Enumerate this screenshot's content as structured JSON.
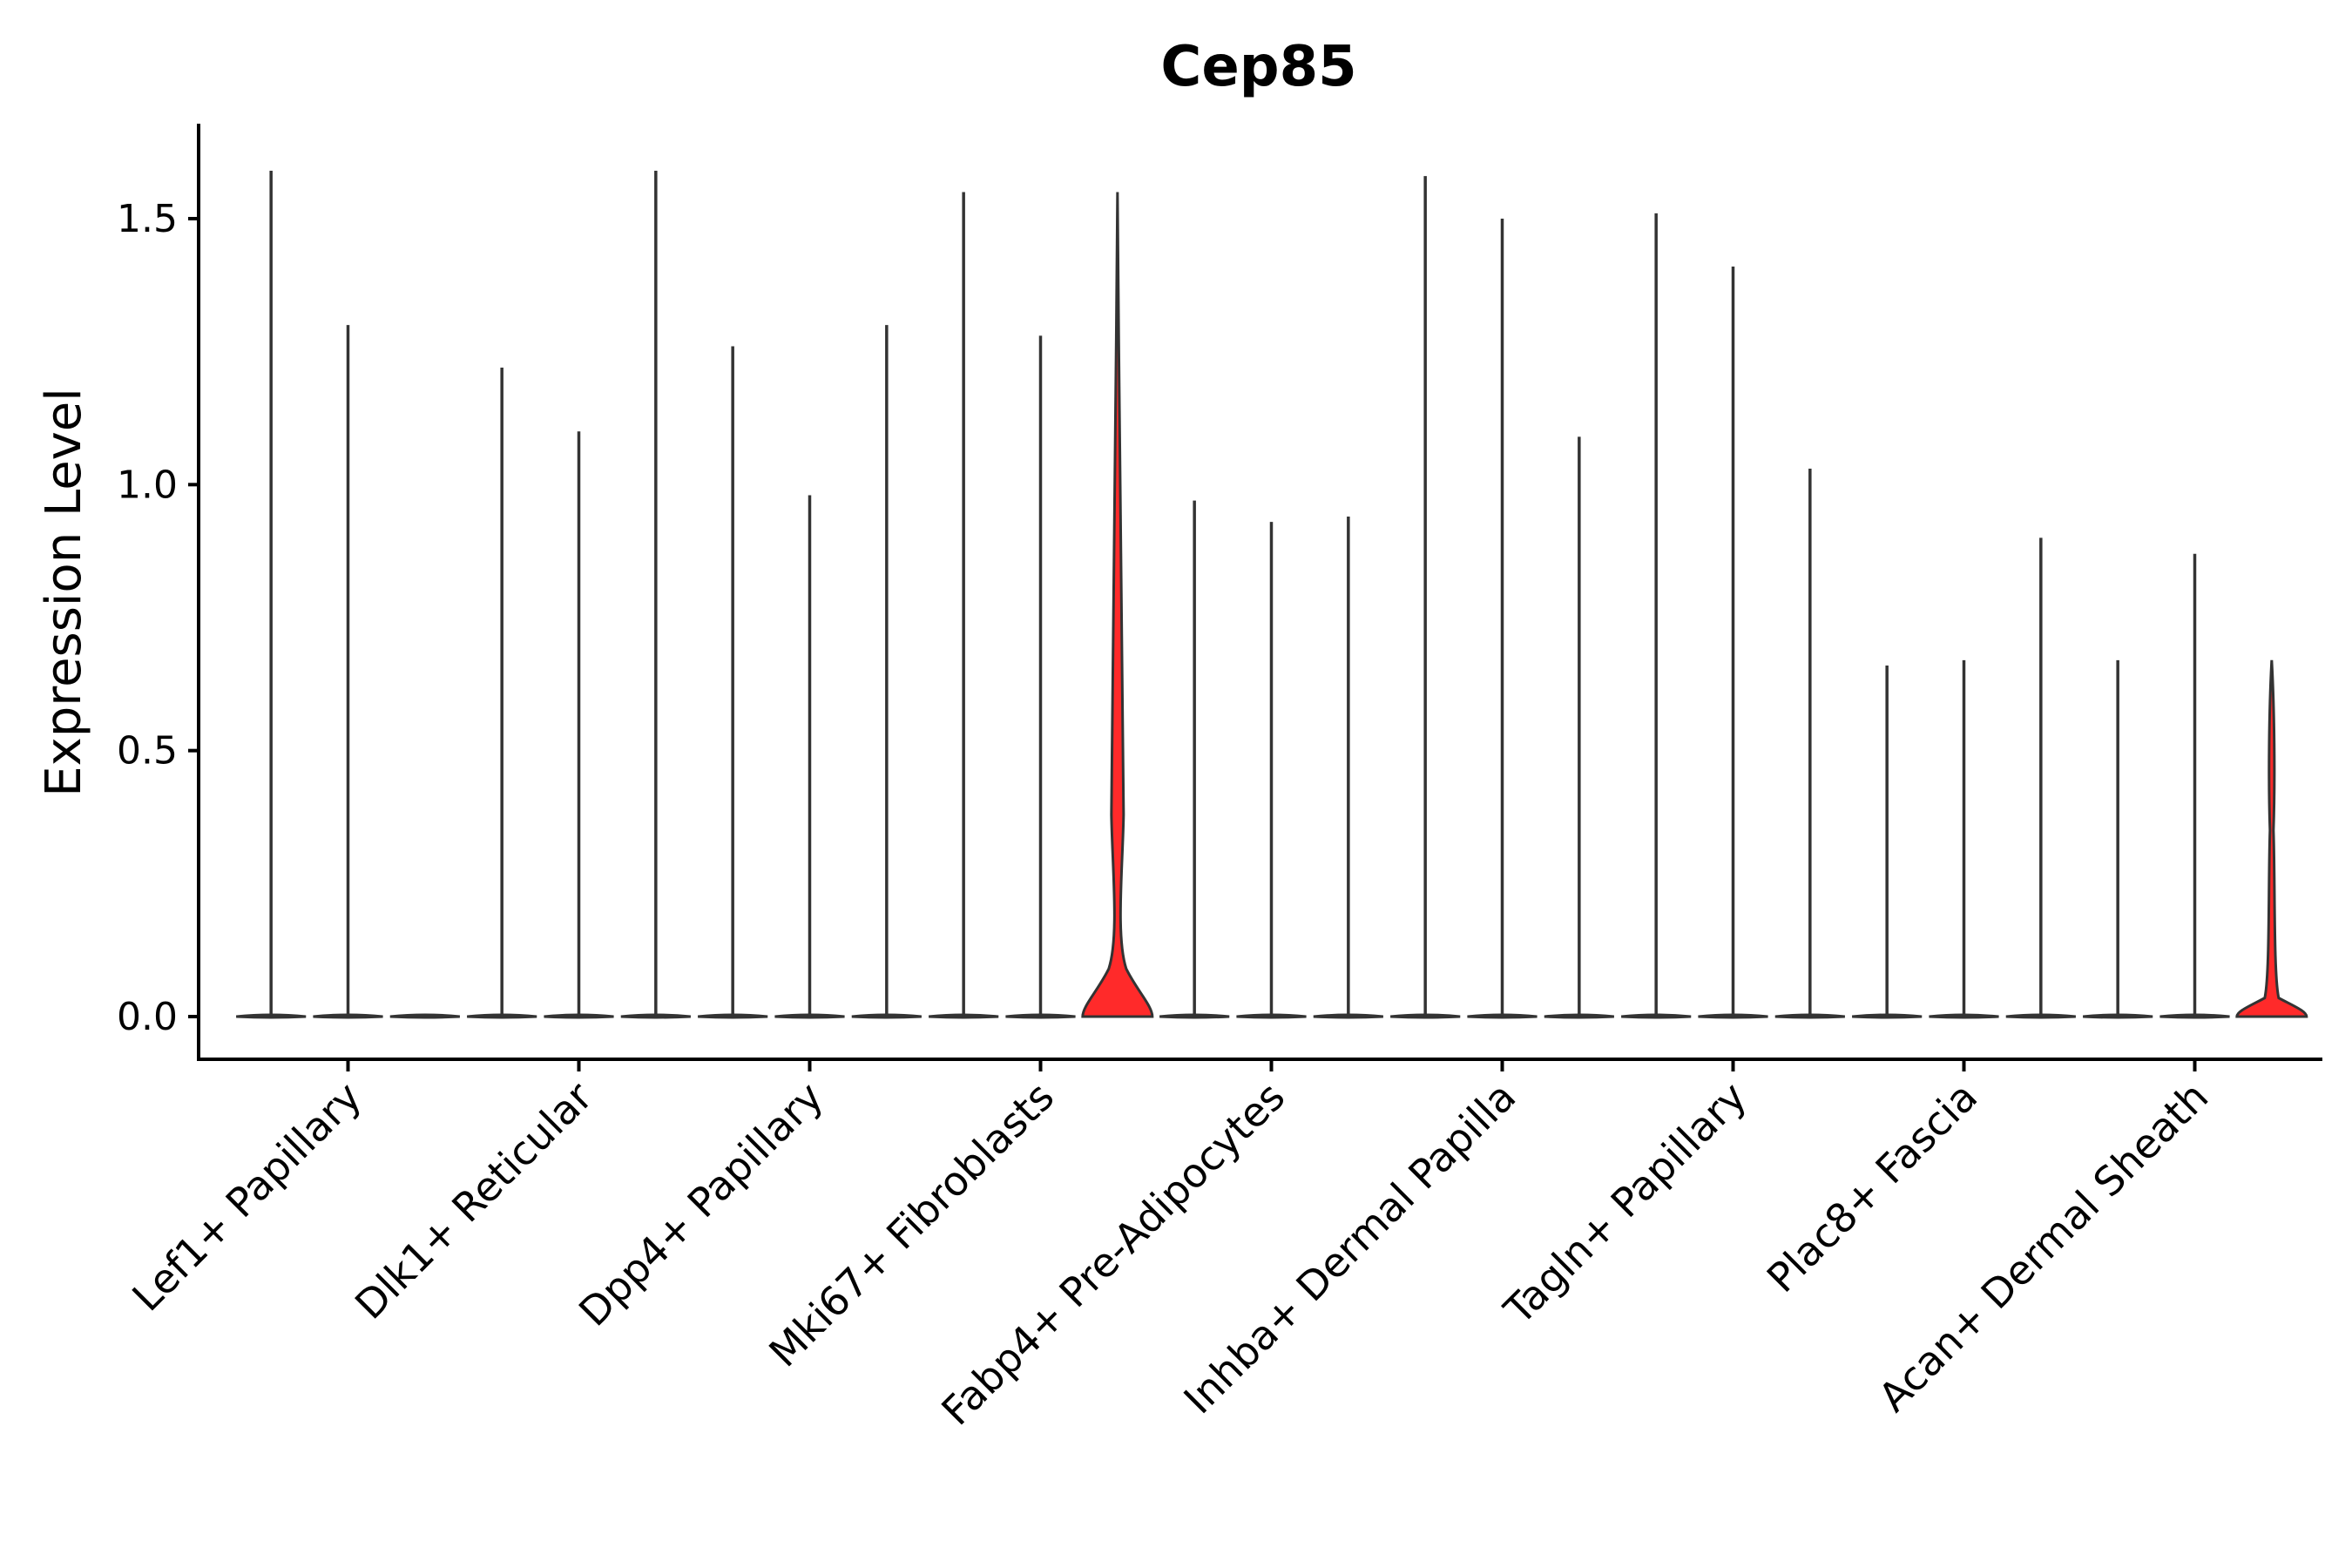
{
  "chart_data": {
    "type": "violin",
    "title": "Cep85",
    "xlabel": "",
    "ylabel": "Expression Level",
    "ylim": [
      -0.08,
      1.68
    ],
    "yticks": [
      0.0,
      0.5,
      1.0,
      1.5
    ],
    "ytick_labels": [
      "0.0",
      "0.5",
      "1.0",
      "1.5"
    ],
    "categories": [
      "Lef1+ Papillary",
      "Dlk1+ Reticular",
      "Dpp4+ Papillary",
      "Mki67+ Fibroblasts",
      "Fabp4+ Pre-Adipocytes",
      "Inhba+ Dermal Papilla",
      "Tagln+ Papillary",
      "Plac8+ Fascia",
      "Acan+ Dermal Sheath"
    ],
    "groups_per_category": 3,
    "violins": [
      {
        "category": "Lef1+ Papillary",
        "index": 0,
        "max": 1.59,
        "color": "#ffffff",
        "highlight": false
      },
      {
        "category": "Lef1+ Papillary",
        "index": 1,
        "max": 1.3,
        "color": "#ffffff",
        "highlight": false
      },
      {
        "category": "Lef1+ Papillary",
        "index": 2,
        "max": 0.0,
        "color": "#ffffff",
        "highlight": false
      },
      {
        "category": "Dlk1+ Reticular",
        "index": 0,
        "max": 1.22,
        "color": "#ffffff",
        "highlight": false
      },
      {
        "category": "Dlk1+ Reticular",
        "index": 1,
        "max": 1.1,
        "color": "#ffffff",
        "highlight": false
      },
      {
        "category": "Dlk1+ Reticular",
        "index": 2,
        "max": 1.59,
        "color": "#ffffff",
        "highlight": false
      },
      {
        "category": "Dpp4+ Papillary",
        "index": 0,
        "max": 1.26,
        "color": "#ffffff",
        "highlight": false
      },
      {
        "category": "Dpp4+ Papillary",
        "index": 1,
        "max": 0.98,
        "color": "#ffffff",
        "highlight": false
      },
      {
        "category": "Dpp4+ Papillary",
        "index": 2,
        "max": 1.3,
        "color": "#ffffff",
        "highlight": false
      },
      {
        "category": "Mki67+ Fibroblasts",
        "index": 0,
        "max": 1.55,
        "color": "#ffffff",
        "highlight": false
      },
      {
        "category": "Mki67+ Fibroblasts",
        "index": 1,
        "max": 1.28,
        "color": "#ffffff",
        "highlight": false
      },
      {
        "category": "Mki67+ Fibroblasts",
        "index": 2,
        "max": 1.55,
        "color": "#ff2a2a",
        "highlight": true
      },
      {
        "category": "Fabp4+ Pre-Adipocytes",
        "index": 0,
        "max": 0.97,
        "color": "#ffffff",
        "highlight": false
      },
      {
        "category": "Fabp4+ Pre-Adipocytes",
        "index": 1,
        "max": 0.93,
        "color": "#ffffff",
        "highlight": false
      },
      {
        "category": "Fabp4+ Pre-Adipocytes",
        "index": 2,
        "max": 0.94,
        "color": "#ffffff",
        "highlight": false
      },
      {
        "category": "Inhba+ Dermal Papilla",
        "index": 0,
        "max": 1.58,
        "color": "#ffffff",
        "highlight": false
      },
      {
        "category": "Inhba+ Dermal Papilla",
        "index": 1,
        "max": 1.5,
        "color": "#ffffff",
        "highlight": false
      },
      {
        "category": "Inhba+ Dermal Papilla",
        "index": 2,
        "max": 1.09,
        "color": "#ffffff",
        "highlight": false
      },
      {
        "category": "Tagln+ Papillary",
        "index": 0,
        "max": 1.51,
        "color": "#ffffff",
        "highlight": false
      },
      {
        "category": "Tagln+ Papillary",
        "index": 1,
        "max": 1.41,
        "color": "#ffffff",
        "highlight": false
      },
      {
        "category": "Tagln+ Papillary",
        "index": 2,
        "max": 1.03,
        "color": "#ffffff",
        "highlight": false
      },
      {
        "category": "Plac8+ Fascia",
        "index": 0,
        "max": 0.66,
        "color": "#ffffff",
        "highlight": false
      },
      {
        "category": "Plac8+ Fascia",
        "index": 1,
        "max": 0.67,
        "color": "#ffffff",
        "highlight": false
      },
      {
        "category": "Plac8+ Fascia",
        "index": 2,
        "max": 0.9,
        "color": "#ffffff",
        "highlight": false
      },
      {
        "category": "Acan+ Dermal Sheath",
        "index": 0,
        "max": 0.67,
        "color": "#ffffff",
        "highlight": false
      },
      {
        "category": "Acan+ Dermal Sheath",
        "index": 1,
        "max": 0.87,
        "color": "#ffffff",
        "highlight": false
      },
      {
        "category": "Acan+ Dermal Sheath",
        "index": 2,
        "max": 0.67,
        "color": "#ff2a2a",
        "highlight": true
      }
    ],
    "highlight_color": "#ff2a2a",
    "outline_color": "#333333"
  }
}
